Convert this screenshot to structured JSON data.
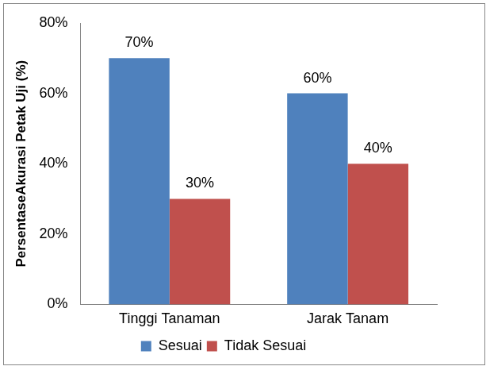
{
  "chart_data": {
    "type": "bar",
    "y_label": "PersentaseAkurasi Petak Uji (%)",
    "categories": [
      "Tinggi Tanaman",
      "Jarak Tanam"
    ],
    "series": [
      {
        "name": "Sesuai",
        "color": "#4f81bd",
        "values": [
          70,
          60
        ],
        "value_labels": [
          "70%",
          "60%"
        ]
      },
      {
        "name": "Tidak Sesuai",
        "color": "#c0504d",
        "values": [
          30,
          40
        ],
        "value_labels": [
          "30%",
          "40%"
        ]
      }
    ],
    "ylim": [
      0,
      80
    ],
    "yticks": [
      {
        "value": 0,
        "label": "0%"
      },
      {
        "value": 20,
        "label": "20%"
      },
      {
        "value": 40,
        "label": "40%"
      },
      {
        "value": 60,
        "label": "60%"
      },
      {
        "value": 80,
        "label": "80%"
      }
    ],
    "grid": false,
    "legend": "bottom",
    "data_labels": true
  }
}
